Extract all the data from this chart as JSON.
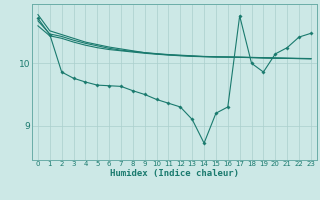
{
  "xlabel": "Humidex (Indice chaleur)",
  "bg_color": "#cce8e6",
  "line_color": "#1a7a6e",
  "grid_color": "#aacfcd",
  "xlim": [
    -0.5,
    23.5
  ],
  "ylim": [
    8.45,
    10.95
  ],
  "yticks": [
    9,
    10
  ],
  "xticks": [
    0,
    1,
    2,
    3,
    4,
    5,
    6,
    7,
    8,
    9,
    10,
    11,
    12,
    13,
    14,
    15,
    16,
    17,
    18,
    19,
    20,
    21,
    22,
    23
  ],
  "smooth_lines": [
    [
      10.78,
      10.52,
      10.46,
      10.4,
      10.34,
      10.3,
      10.26,
      10.23,
      10.2,
      10.17,
      10.155,
      10.14,
      10.13,
      10.12,
      10.11,
      10.105,
      10.1,
      10.098,
      10.095,
      10.09,
      10.085,
      10.082,
      10.079,
      10.076
    ],
    [
      10.68,
      10.47,
      10.43,
      10.37,
      10.32,
      10.28,
      10.24,
      10.21,
      10.19,
      10.17,
      10.15,
      10.135,
      10.125,
      10.115,
      10.107,
      10.102,
      10.1,
      10.097,
      10.092,
      10.087,
      10.083,
      10.079,
      10.076,
      10.073
    ],
    [
      10.6,
      10.44,
      10.4,
      10.34,
      10.29,
      10.25,
      10.22,
      10.2,
      10.18,
      10.16,
      10.145,
      10.132,
      10.12,
      10.11,
      10.105,
      10.1,
      10.1,
      10.095,
      10.09,
      10.085,
      10.082,
      10.078,
      10.075,
      10.072
    ]
  ],
  "lower_line": {
    "x": [
      0,
      1,
      2,
      3,
      4,
      5,
      6,
      7,
      8,
      9,
      10,
      11,
      12,
      13,
      14,
      15,
      16,
      17,
      18,
      19,
      20,
      21,
      22,
      23
    ],
    "y": [
      10.72,
      10.46,
      9.86,
      9.76,
      9.7,
      9.65,
      9.64,
      9.63,
      9.56,
      9.5,
      9.42,
      9.36,
      9.3,
      9.1,
      8.72,
      9.2,
      9.3,
      10.76,
      10.0,
      9.86,
      10.15,
      10.25,
      10.42,
      10.48
    ]
  }
}
